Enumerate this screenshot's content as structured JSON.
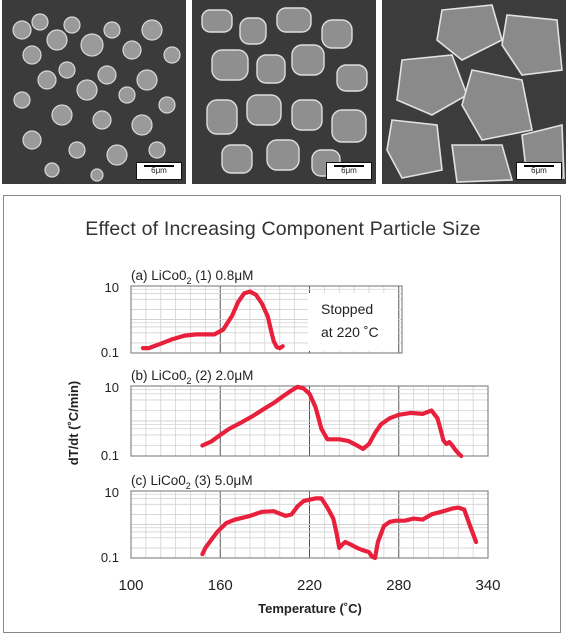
{
  "sem_images": [
    {
      "scale_label": "6μm"
    },
    {
      "scale_label": "6μm"
    },
    {
      "scale_label": "6μm"
    }
  ],
  "colors": {
    "line": "#e8203c",
    "grid": "#d3d3d3",
    "frame": "#888888",
    "sem_bg": "#3a3a3a"
  },
  "chart_data": {
    "type": "line",
    "title": "Effect of Increasing Component Particle Size",
    "xlabel": "Temperature (˚C)",
    "ylabel": "dT/dt (˚C/min)",
    "x_ticks": [
      100,
      160,
      220,
      280,
      340
    ],
    "xlim": [
      100,
      340
    ],
    "y_scale": "log",
    "y_ticks": [
      "10",
      "0.1"
    ],
    "ylim": [
      0.1,
      10
    ],
    "grid": true,
    "panels": [
      {
        "label_prefix": "(a) LiCo0",
        "label_sub": "2",
        "label_suffix": " (1) 0.8μM",
        "annotation": [
          "Stopped",
          "at 220 ˚C"
        ],
        "x": [
          108,
          112,
          120,
          128,
          136,
          144,
          150,
          156,
          162,
          168,
          172,
          176,
          180,
          184,
          188,
          192,
          194,
          196,
          198,
          200,
          202
        ],
        "y": [
          0.14,
          0.14,
          0.19,
          0.26,
          0.33,
          0.36,
          0.36,
          0.36,
          0.5,
          1.3,
          3.3,
          6.0,
          6.8,
          5.5,
          3.0,
          1.2,
          0.5,
          0.22,
          0.15,
          0.14,
          0.16
        ]
      },
      {
        "label_prefix": "(b) LiCo0",
        "label_sub": "2",
        "label_suffix": " (2) 2.0μM",
        "annotation": [],
        "x": [
          148,
          154,
          160,
          166,
          174,
          182,
          190,
          196,
          202,
          208,
          212,
          216,
          220,
          224,
          228,
          232,
          236,
          240,
          246,
          252,
          256,
          260,
          264,
          268,
          274,
          280,
          288,
          296,
          302,
          306,
          308,
          310,
          312,
          314,
          316,
          318,
          320,
          322
        ],
        "y": [
          0.2,
          0.26,
          0.4,
          0.6,
          0.9,
          1.4,
          2.3,
          3.3,
          5.0,
          7.5,
          9.5,
          8.5,
          6.0,
          2.5,
          0.6,
          0.3,
          0.3,
          0.3,
          0.27,
          0.2,
          0.16,
          0.22,
          0.45,
          0.8,
          1.2,
          1.5,
          1.7,
          1.6,
          2.0,
          1.2,
          0.6,
          0.28,
          0.22,
          0.25,
          0.2,
          0.15,
          0.12,
          0.1
        ]
      },
      {
        "label_prefix": "(c) LiCo0",
        "label_sub": "2",
        "label_suffix": " (3) 5.0μM",
        "annotation": [],
        "x": [
          148,
          150,
          154,
          158,
          164,
          170,
          180,
          188,
          196,
          200,
          204,
          208,
          212,
          216,
          220,
          224,
          228,
          232,
          236,
          238,
          240,
          242,
          244,
          248,
          252,
          256,
          260,
          262,
          264,
          266,
          270,
          274,
          278,
          284,
          290,
          296,
          302,
          310,
          316,
          320,
          324,
          328,
          332
        ],
        "y": [
          0.13,
          0.2,
          0.35,
          0.6,
          1.1,
          1.4,
          1.8,
          2.4,
          2.5,
          2.1,
          1.8,
          2.0,
          3.5,
          5.0,
          5.5,
          6.0,
          6.0,
          3.2,
          1.5,
          0.6,
          0.2,
          0.25,
          0.3,
          0.25,
          0.2,
          0.17,
          0.15,
          0.11,
          0.1,
          0.3,
          0.9,
          1.2,
          1.3,
          1.3,
          1.5,
          1.4,
          2.0,
          2.5,
          3.0,
          3.2,
          2.8,
          0.9,
          0.3
        ]
      }
    ]
  }
}
